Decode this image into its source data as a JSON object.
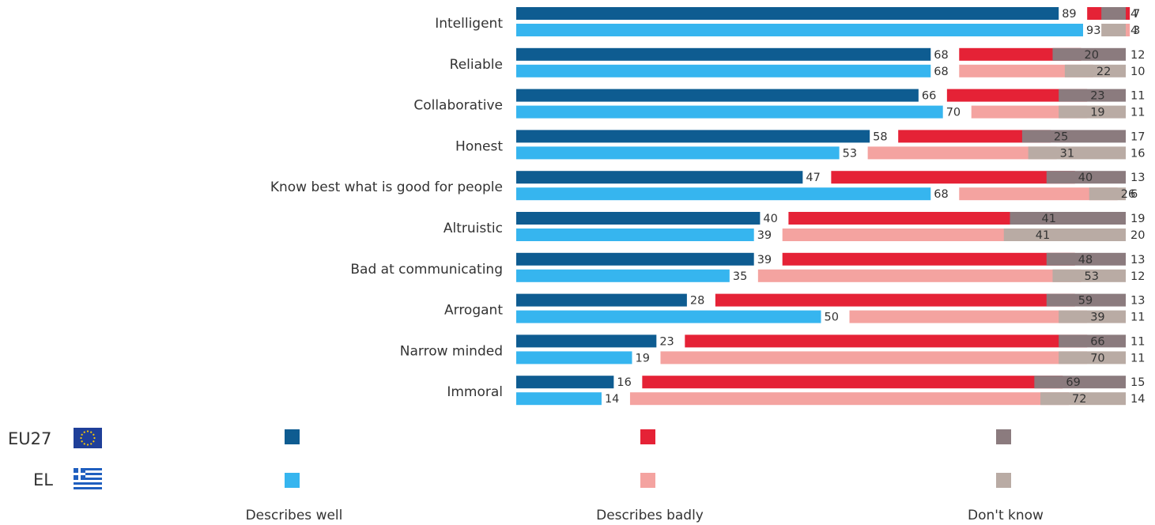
{
  "chart_data": {
    "type": "bar",
    "orientation": "horizontal",
    "stacked": true,
    "xlim": [
      0,
      100
    ],
    "grid": false,
    "legend_position": "bottom",
    "categories": [
      "Intelligent",
      "Reliable",
      "Collaborative",
      "Honest",
      "Know best what is good for people",
      "Altruistic",
      "Bad at communicating",
      "Arrogant",
      "Narrow minded",
      "Immoral"
    ],
    "groups": [
      {
        "name": "EU27",
        "flag_icon": "eu-flag-icon",
        "series": [
          {
            "name": "Describes well",
            "color": "#0e5c91",
            "values": [
              89,
              68,
              66,
              58,
              47,
              40,
              39,
              28,
              23,
              16
            ]
          },
          {
            "name": "Describes badly",
            "color": "#e52236",
            "values": [
              7,
              20,
              23,
              25,
              40,
              41,
              48,
              59,
              66,
              69
            ]
          },
          {
            "name": "Don't know",
            "color": "#8b7b7e",
            "values": [
              4,
              12,
              11,
              17,
              13,
              19,
              13,
              13,
              11,
              15
            ]
          }
        ]
      },
      {
        "name": "EL",
        "flag_icon": "greece-flag-icon",
        "series": [
          {
            "name": "Describes well",
            "color": "#36b5ef",
            "values": [
              93,
              68,
              70,
              53,
              68,
              39,
              35,
              50,
              19,
              14
            ]
          },
          {
            "name": "Describes badly",
            "color": "#f4a3a0",
            "values": [
              3,
              22,
              19,
              31,
              26,
              41,
              53,
              39,
              70,
              72
            ]
          },
          {
            "name": "Don't know",
            "color": "#b9aba4",
            "values": [
              4,
              10,
              11,
              16,
              6,
              20,
              12,
              11,
              11,
              14
            ]
          }
        ]
      }
    ],
    "legend": {
      "rows": [
        "EU27",
        "EL"
      ],
      "columns": [
        "Describes well",
        "Describes badly",
        "Don't know"
      ]
    }
  }
}
